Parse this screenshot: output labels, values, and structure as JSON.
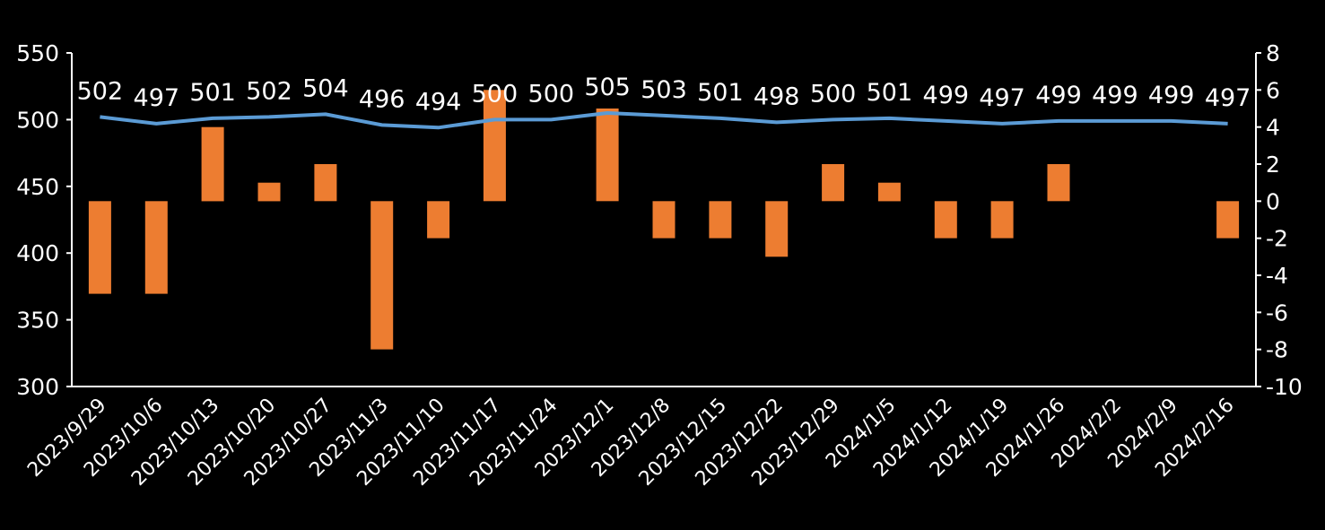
{
  "colors": {
    "background": "#000000",
    "line": "#5b9bd5",
    "bar": "#ed7d31",
    "text": "#ffffff",
    "axis": "#ffffff"
  },
  "chart_data": {
    "type": "bar+line",
    "categories": [
      "2023/9/29",
      "2023/10/6",
      "2023/10/13",
      "2023/10/20",
      "2023/10/27",
      "2023/11/3",
      "2023/11/10",
      "2023/11/17",
      "2023/11/24",
      "2023/12/1",
      "2023/12/8",
      "2023/12/15",
      "2023/12/22",
      "2023/12/29",
      "2024/1/5",
      "2024/1/12",
      "2024/1/19",
      "2024/1/26",
      "2024/2/2",
      "2024/2/9",
      "2024/2/16"
    ],
    "line_values": [
      502,
      497,
      501,
      502,
      504,
      496,
      494,
      500,
      500,
      505,
      503,
      501,
      498,
      500,
      501,
      499,
      497,
      499,
      499,
      499,
      497
    ],
    "line_axis": "left",
    "bar_values": [
      -5,
      -5,
      4,
      1,
      2,
      -8,
      -2,
      6,
      0,
      5,
      -2,
      -2,
      -3,
      2,
      1,
      -2,
      -2,
      2,
      0,
      0,
      -2
    ],
    "bar_axis": "right",
    "y_left": {
      "min": 300,
      "max": 550,
      "ticks": [
        300,
        350,
        400,
        450,
        500,
        550
      ]
    },
    "y_right": {
      "min": -10,
      "max": 8,
      "ticks": [
        -10,
        -8,
        -6,
        -4,
        -2,
        0,
        2,
        4,
        6,
        8
      ]
    },
    "data_labels_on": "line",
    "grid": false,
    "legend": "none"
  }
}
